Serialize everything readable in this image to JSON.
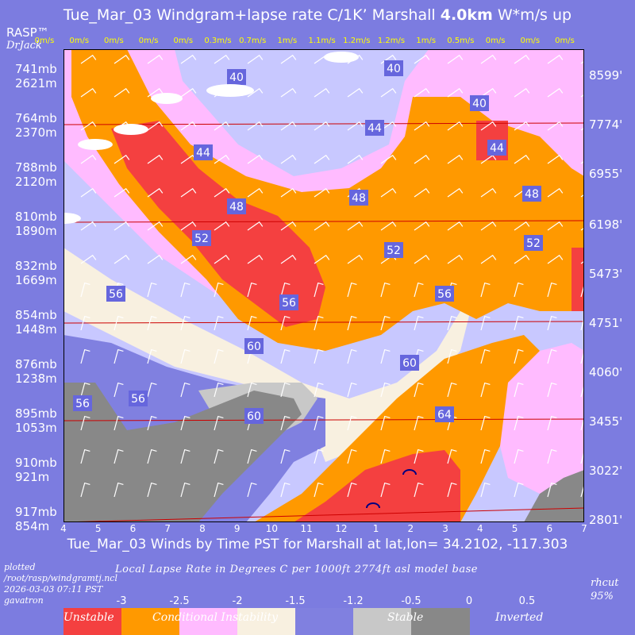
{
  "title": {
    "date": "Tue_Mar_03",
    "text": "Windgram+lapse rate C/1K’",
    "site": "Marshall",
    "top": "4.0km",
    "suffix": "W*m/s up"
  },
  "brand": {
    "rasp": "RASP™",
    "author": "DrJack"
  },
  "wstar_labels": [
    "0m/s",
    "0m/s",
    "0m/s",
    "0m/s",
    "0m/s",
    "0.3m/s",
    "0.7m/s",
    "1m/s",
    "1.1m/s",
    "1.2m/s",
    "1.2m/s",
    "1m/s",
    "0.5m/s",
    "0m/s",
    "0m/s",
    "0m/s"
  ],
  "left_axis": [
    {
      "mb": "741mb",
      "m": "2621m"
    },
    {
      "mb": "764mb",
      "m": "2370m"
    },
    {
      "mb": "788mb",
      "m": "2120m"
    },
    {
      "mb": "810mb",
      "m": "1890m"
    },
    {
      "mb": "832mb",
      "m": "1669m"
    },
    {
      "mb": "854mb",
      "m": "1448m"
    },
    {
      "mb": "876mb",
      "m": "1238m"
    },
    {
      "mb": "895mb",
      "m": "1053m"
    },
    {
      "mb": "910mb",
      "m": "921m"
    },
    {
      "mb": "917mb",
      "m": "854m"
    }
  ],
  "right_axis": [
    "8599'",
    "7774'",
    "6955'",
    "6198'",
    "5473'",
    "4751'",
    "4060'",
    "3455'",
    "3022'",
    "2801'"
  ],
  "x_ticks": [
    "4",
    "5",
    "6",
    "7",
    "8",
    "9",
    "10",
    "11",
    "12",
    "1",
    "2",
    "3",
    "4",
    "5",
    "6",
    "7"
  ],
  "x_title": "Tue_Mar_03 Winds by Time PST for Marshall at lat,lon= 34.2102, -117.303",
  "footer": {
    "plotted": "plotted",
    "path": "/root/rasp/windgramtj.ncl",
    "stamp": "2026-03-03 07:11 PST",
    "host": "gavatron",
    "legend_title": "Local Lapse Rate in Degrees C per 1000ft   2774ft asl model base",
    "rhcut": "rhcut",
    "rhcut_value": "95%"
  },
  "legend": {
    "ticks": [
      "-3",
      "-2.5",
      "-2",
      "-1.5",
      "-1.2",
      "-0.5",
      "0",
      "0.5"
    ],
    "names": [
      "Unstable",
      "Conditional Instability",
      "Stable",
      "Inverted"
    ],
    "colors": [
      "#f44040",
      "#ff9900",
      "#ffbbff",
      "#f8f0e0",
      "#8080e0",
      "#c8c8c8",
      "#888888"
    ]
  },
  "chart_data": {
    "type": "heatmap",
    "title": "Tue_Mar_03 Windgram+lapse rate C/1K’ Marshall 4.0km W*m/s up",
    "xlabel": "Tue_Mar_03 Winds by Time PST for Marshall at lat,lon= 34.2102, -117.303",
    "x_ticks": [
      "4",
      "5",
      "6",
      "7",
      "8",
      "9",
      "10",
      "11",
      "12",
      "1",
      "2",
      "3",
      "4",
      "5",
      "6",
      "7"
    ],
    "y_levels_mb": [
      741,
      764,
      788,
      810,
      832,
      854,
      876,
      895,
      910,
      917
    ],
    "y_levels_m": [
      2621,
      2370,
      2120,
      1890,
      1669,
      1448,
      1238,
      1053,
      921,
      854
    ],
    "y_levels_ft": [
      8599,
      7774,
      6955,
      6198,
      5473,
      4751,
      4060,
      3455,
      3022,
      2801
    ],
    "wstar_mps": [
      0,
      0,
      0,
      0,
      0,
      0.3,
      0.7,
      1,
      1.1,
      1.2,
      1.2,
      1,
      0.5,
      0,
      0,
      0
    ],
    "contour_labels": [
      40,
      40,
      40,
      44,
      44,
      44,
      48,
      48,
      48,
      52,
      52,
      52,
      56,
      56,
      56,
      56,
      60,
      60,
      60,
      64,
      56
    ],
    "color_scale": {
      "thresholds": [
        -3,
        -2.5,
        -2,
        -1.5,
        -1.2,
        -0.5,
        0,
        0.5
      ],
      "colors": [
        "#f44040",
        "#ff9900",
        "#ffbbff",
        "#f8f0e0",
        "#8080e0",
        "#c8c8c8",
        "#888888"
      ],
      "labels": [
        "Unstable",
        "Conditional Instability",
        "Stable",
        "Inverted"
      ]
    }
  }
}
